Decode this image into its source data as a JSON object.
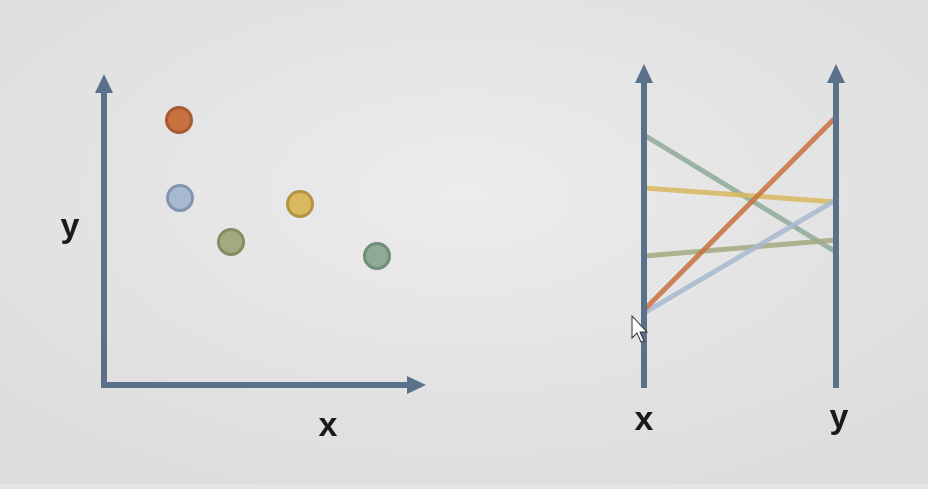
{
  "scatter": {
    "x_label": "x",
    "y_label": "y"
  },
  "parallel": {
    "axes": [
      "x",
      "y"
    ]
  }
}
